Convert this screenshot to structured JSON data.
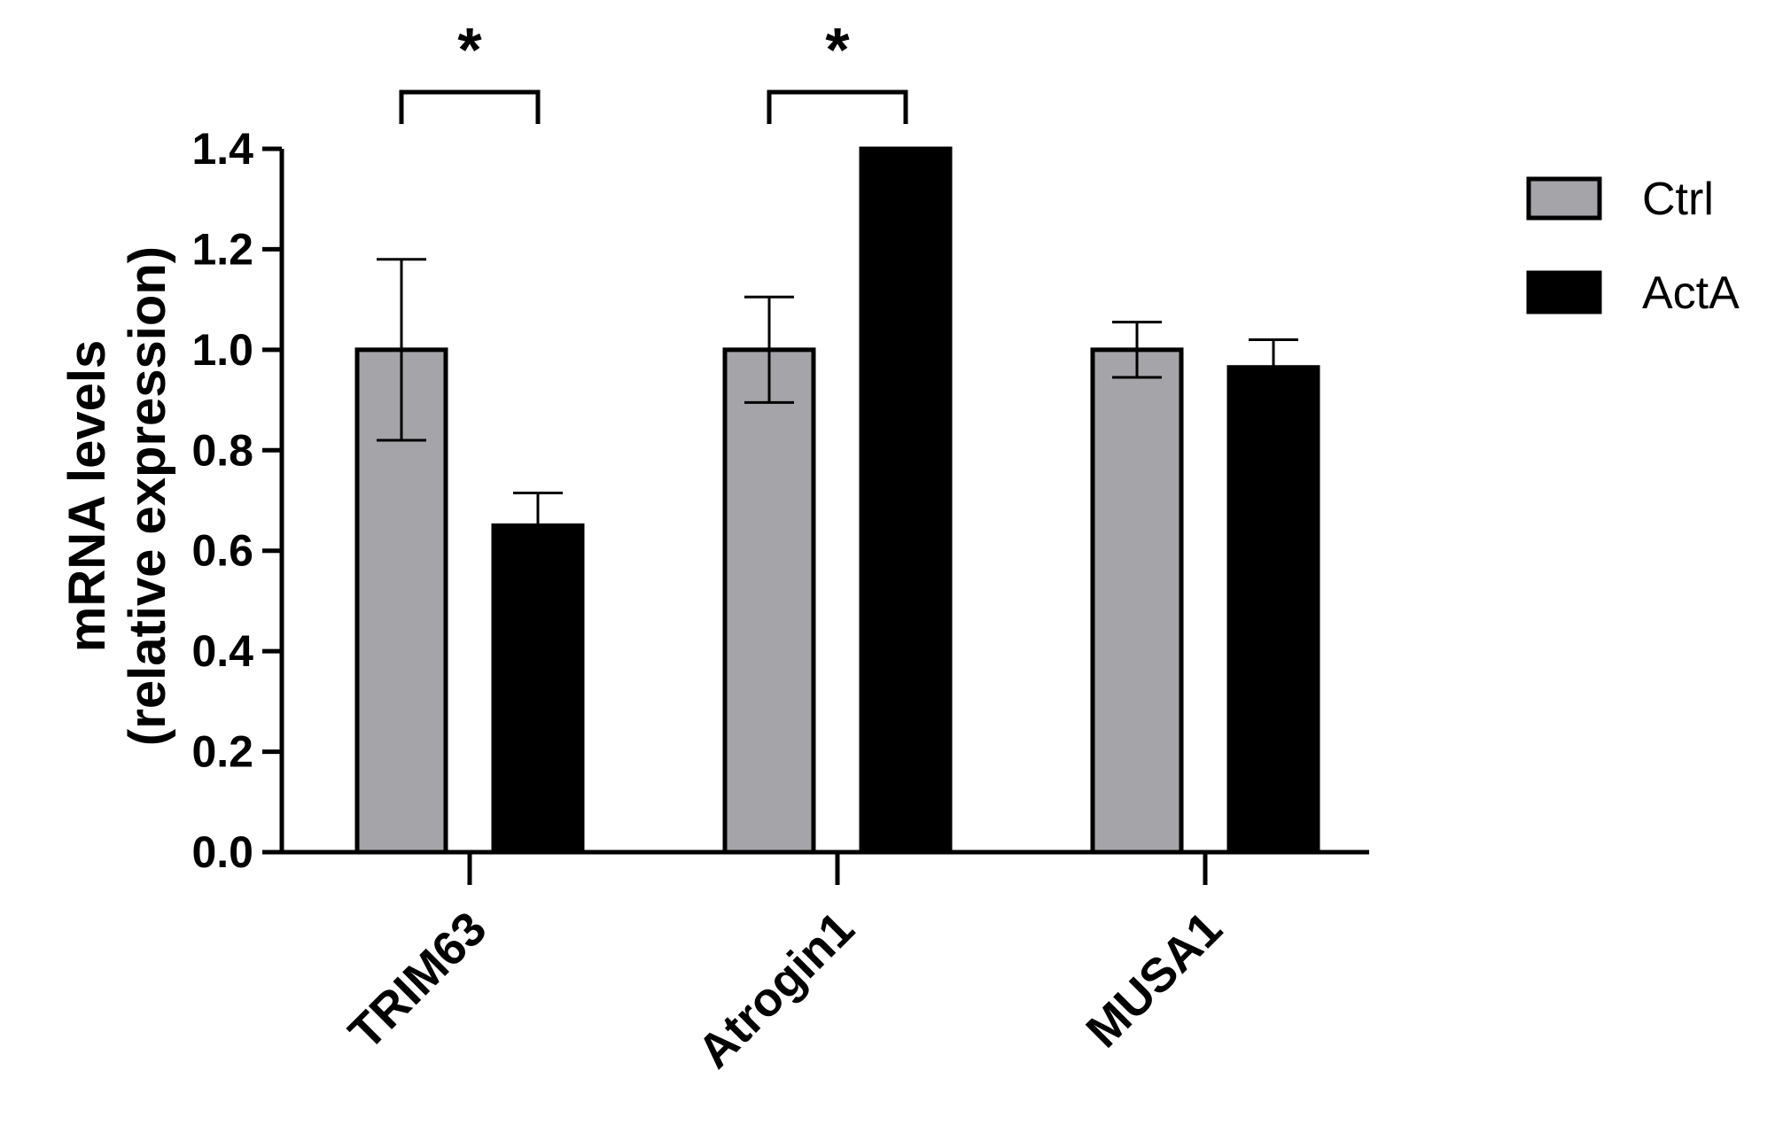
{
  "chart_data": {
    "type": "bar",
    "categories": [
      "TRIM63",
      "Atrogin1",
      "MUSA1"
    ],
    "series": [
      {
        "name": "Ctrl",
        "color": "#a5a4a9",
        "values": [
          1.0,
          1.0,
          1.0
        ],
        "errors": [
          0.18,
          0.105,
          0.055
        ]
      },
      {
        "name": "ActA",
        "color": "#000000",
        "values": [
          0.65,
          1.4,
          0.965
        ],
        "errors": [
          0.065,
          0.0,
          0.055
        ]
      }
    ],
    "ylabel_lines": [
      "mRNA levels",
      "(relative expression)"
    ],
    "xlabel": "",
    "ylim": [
      0,
      1.4
    ],
    "yticks": [
      "0.0",
      "0.2",
      "0.4",
      "0.6",
      "0.8",
      "1.0",
      "1.2",
      "1.4"
    ],
    "significance": [
      {
        "category": "TRIM63",
        "label": "*"
      },
      {
        "category": "Atrogin1",
        "label": "*"
      }
    ],
    "legend_position": "top-right",
    "grid": false
  }
}
